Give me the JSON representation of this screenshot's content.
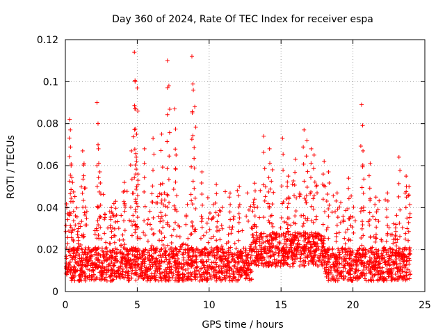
{
  "chart_data": {
    "type": "scatter",
    "title": "Day 360 of 2024, Rate Of TEC Index for receiver espa",
    "xlabel": "GPS time / hours",
    "ylabel": "ROTI / TECUs",
    "xlim": [
      0,
      25
    ],
    "ylim": [
      0,
      0.12
    ],
    "xticks": [
      0,
      5,
      10,
      15,
      20,
      25
    ],
    "yticks": [
      0,
      0.02,
      0.04,
      0.06,
      0.08,
      0.1,
      0.12
    ],
    "xtick_labels": [
      "0",
      "5",
      "10",
      "15",
      "20",
      "25"
    ],
    "ytick_labels": [
      "0",
      "0.02",
      "0.04",
      "0.06",
      "0.08",
      "0.1",
      "0.12"
    ],
    "grid": true,
    "marker": "+",
    "color": "#ff0000",
    "series": [
      {
        "name": "ROTI",
        "x": [
          0.1,
          0.3,
          0.35,
          0.4,
          0.5,
          0.9,
          1.2,
          1.3,
          2.2,
          2.3,
          2.4,
          3.2,
          3.5,
          4.1,
          4.6,
          4.8,
          4.85,
          4.9,
          4.95,
          5.0,
          5.05,
          5.5,
          6.1,
          6.6,
          6.7,
          7.1,
          7.2,
          7.6,
          7.7,
          8.8,
          8.9,
          9.0,
          9.5,
          10.5,
          11.4,
          12.1,
          13.2,
          13.8,
          14.2,
          14.4,
          15.1,
          15.5,
          16.0,
          16.6,
          16.8,
          17.1,
          17.3,
          18.0,
          18.3,
          18.9,
          19.7,
          20.6,
          20.7,
          21.2,
          21.6,
          22.4,
          23.0,
          23.2,
          23.7,
          23.9
        ],
        "y": [
          0.04,
          0.082,
          0.077,
          0.06,
          0.052,
          0.03,
          0.067,
          0.061,
          0.09,
          0.068,
          0.057,
          0.04,
          0.043,
          0.052,
          0.067,
          0.114,
          0.1,
          0.087,
          0.062,
          0.097,
          0.056,
          0.068,
          0.073,
          0.051,
          0.075,
          0.11,
          0.098,
          0.087,
          0.065,
          0.112,
          0.096,
          0.088,
          0.057,
          0.051,
          0.045,
          0.05,
          0.048,
          0.074,
          0.068,
          0.058,
          0.073,
          0.055,
          0.063,
          0.077,
          0.072,
          0.068,
          0.065,
          0.062,
          0.057,
          0.047,
          0.054,
          0.089,
          0.067,
          0.061,
          0.045,
          0.047,
          0.032,
          0.064,
          0.055,
          0.05
        ]
      }
    ]
  }
}
